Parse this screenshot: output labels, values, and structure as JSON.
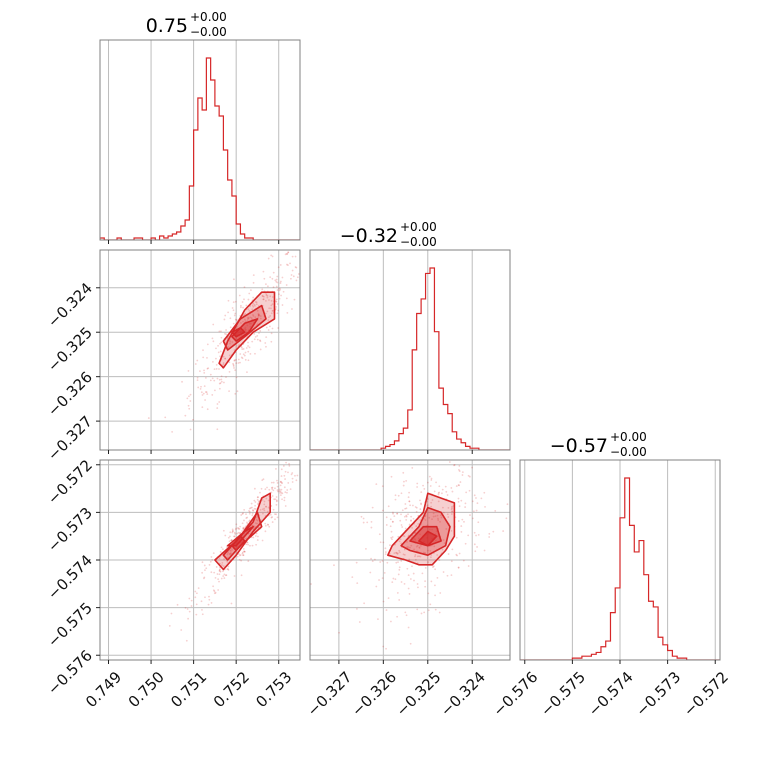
{
  "chart_data": {
    "type": "corner",
    "accent_color": "#d62728",
    "grid": true,
    "parameters": [
      {
        "range": [
          0.7488,
          0.7535
        ],
        "ticks": [
          0.749,
          0.75,
          0.751,
          0.752,
          0.753
        ]
      },
      {
        "range": [
          -0.32765,
          -0.32315
        ],
        "ticks": [
          -0.327,
          -0.326,
          -0.325,
          -0.324
        ]
      },
      {
        "range": [
          -0.5761,
          -0.5719
        ],
        "ticks": [
          -0.576,
          -0.575,
          -0.574,
          -0.573,
          -0.572
        ]
      }
    ],
    "tick_labels": {
      "p0": [
        "0.749",
        "0.750",
        "0.751",
        "0.752",
        "0.753"
      ],
      "p1": [
        "−0.327",
        "−0.326",
        "−0.325",
        "−0.324"
      ],
      "p2": [
        "−0.576",
        "−0.575",
        "−0.574",
        "−0.573",
        "−0.572"
      ]
    },
    "titles": [
      {
        "main": "0.75",
        "plus": "+0.00",
        "minus": "−0.00"
      },
      {
        "main": "−0.32",
        "plus": "+0.00",
        "minus": "−0.00"
      },
      {
        "main": "−0.57",
        "plus": "+0.00",
        "minus": "−0.00"
      }
    ],
    "histograms": [
      {
        "param": 0,
        "bin_start": 0.7488,
        "bin_width": 0.0001,
        "counts": [
          1,
          0,
          0,
          0,
          1,
          0,
          0,
          0,
          1,
          1,
          0,
          0,
          1,
          0,
          2,
          1,
          2,
          3,
          4,
          7,
          10,
          27,
          55,
          71,
          65,
          91,
          80,
          67,
          62,
          45,
          30,
          22,
          8,
          3,
          1,
          1,
          0,
          0,
          0,
          0,
          0,
          0,
          0,
          0,
          0,
          0,
          0
        ]
      },
      {
        "param": 1,
        "bin_start": -0.32765,
        "bin_width": 0.0001,
        "counts": [
          0,
          0,
          0,
          0,
          0,
          0,
          0,
          0,
          0,
          0,
          0,
          0,
          0,
          0,
          0,
          0,
          1,
          2,
          3,
          5,
          9,
          12,
          22,
          55,
          75,
          83,
          97,
          100,
          65,
          34,
          25,
          20,
          10,
          6,
          4,
          2,
          1,
          1,
          0,
          0,
          0,
          0,
          0,
          0,
          0,
          0
        ]
      },
      {
        "param": 2,
        "bin_start": -0.5761,
        "bin_width": 0.0001,
        "counts": [
          0,
          0,
          0,
          0,
          0,
          0,
          0,
          0,
          0,
          0,
          0,
          1,
          1,
          2,
          2,
          3,
          4,
          7,
          10,
          25,
          38,
          75,
          96,
          71,
          57,
          63,
          45,
          31,
          28,
          12,
          8,
          5,
          2,
          1,
          1,
          0,
          0,
          0,
          0,
          0,
          0,
          0
        ]
      }
    ],
    "pairs": [
      {
        "x": 0,
        "y": 1,
        "levels": [
          [
            [
              0.7516,
              -0.3257
            ],
            [
              0.7518,
              -0.3252
            ],
            [
              0.7522,
              -0.3245
            ],
            [
              0.7526,
              -0.3241
            ],
            [
              0.7529,
              -0.3241
            ],
            [
              0.7529,
              -0.3247
            ],
            [
              0.7524,
              -0.325
            ],
            [
              0.752,
              -0.3254
            ],
            [
              0.7517,
              -0.3258
            ]
          ],
          [
            [
              0.7517,
              -0.3252
            ],
            [
              0.7521,
              -0.3247
            ],
            [
              0.7526,
              -0.3244
            ],
            [
              0.7527,
              -0.3247
            ],
            [
              0.7522,
              -0.3251
            ],
            [
              0.7518,
              -0.3254
            ]
          ],
          [
            [
              0.7519,
              -0.3251
            ],
            [
              0.7522,
              -0.3248
            ],
            [
              0.7525,
              -0.3247
            ],
            [
              0.7523,
              -0.325
            ],
            [
              0.752,
              -0.3252
            ]
          ],
          [
            [
              0.7519,
              -0.325
            ],
            [
              0.7521,
              -0.3249
            ],
            [
              0.7522,
              -0.325
            ],
            [
              0.752,
              -0.3251
            ]
          ]
        ]
      },
      {
        "x": 0,
        "y": 2,
        "levels": [
          [
            [
              0.7515,
              -0.574
            ],
            [
              0.752,
              -0.5736
            ],
            [
              0.7524,
              -0.5732
            ],
            [
              0.7526,
              -0.5727
            ],
            [
              0.7528,
              -0.5726
            ],
            [
              0.7528,
              -0.573
            ],
            [
              0.7524,
              -0.5734
            ],
            [
              0.752,
              -0.5739
            ],
            [
              0.7517,
              -0.5742
            ]
          ],
          [
            [
              0.7517,
              -0.5739
            ],
            [
              0.7521,
              -0.5735
            ],
            [
              0.7525,
              -0.573
            ],
            [
              0.7526,
              -0.5733
            ],
            [
              0.7521,
              -0.5737
            ],
            [
              0.7518,
              -0.574
            ]
          ],
          [
            [
              0.7518,
              -0.5737
            ],
            [
              0.7522,
              -0.5734
            ],
            [
              0.7524,
              -0.5733
            ],
            [
              0.752,
              -0.5737
            ]
          ],
          [
            [
              0.7519,
              -0.5737
            ],
            [
              0.7521,
              -0.5735
            ],
            [
              0.7522,
              -0.5736
            ],
            [
              0.752,
              -0.5738
            ]
          ]
        ]
      },
      {
        "x": 1,
        "y": 2,
        "levels": [
          [
            [
              -0.3258,
              -0.5737
            ],
            [
              -0.3254,
              -0.5733
            ],
            [
              -0.3251,
              -0.573
            ],
            [
              -0.325,
              -0.5726
            ],
            [
              -0.3247,
              -0.5727
            ],
            [
              -0.3244,
              -0.5728
            ],
            [
              -0.3244,
              -0.5735
            ],
            [
              -0.3246,
              -0.5738
            ],
            [
              -0.3249,
              -0.5741
            ],
            [
              -0.3252,
              -0.5741
            ],
            [
              -0.3255,
              -0.574
            ],
            [
              -0.3259,
              -0.5739
            ]
          ],
          [
            [
              -0.3256,
              -0.5737
            ],
            [
              -0.3252,
              -0.5733
            ],
            [
              -0.325,
              -0.5729
            ],
            [
              -0.3247,
              -0.573
            ],
            [
              -0.3245,
              -0.5733
            ],
            [
              -0.3246,
              -0.5737
            ],
            [
              -0.325,
              -0.5739
            ],
            [
              -0.3254,
              -0.5738
            ]
          ],
          [
            [
              -0.3254,
              -0.5736
            ],
            [
              -0.3251,
              -0.5733
            ],
            [
              -0.3248,
              -0.5733
            ],
            [
              -0.3247,
              -0.5736
            ],
            [
              -0.325,
              -0.5737
            ]
          ],
          [
            [
              -0.3252,
              -0.5736
            ],
            [
              -0.325,
              -0.5734
            ],
            [
              -0.3248,
              -0.5735
            ],
            [
              -0.325,
              -0.5737
            ]
          ]
        ]
      }
    ]
  }
}
